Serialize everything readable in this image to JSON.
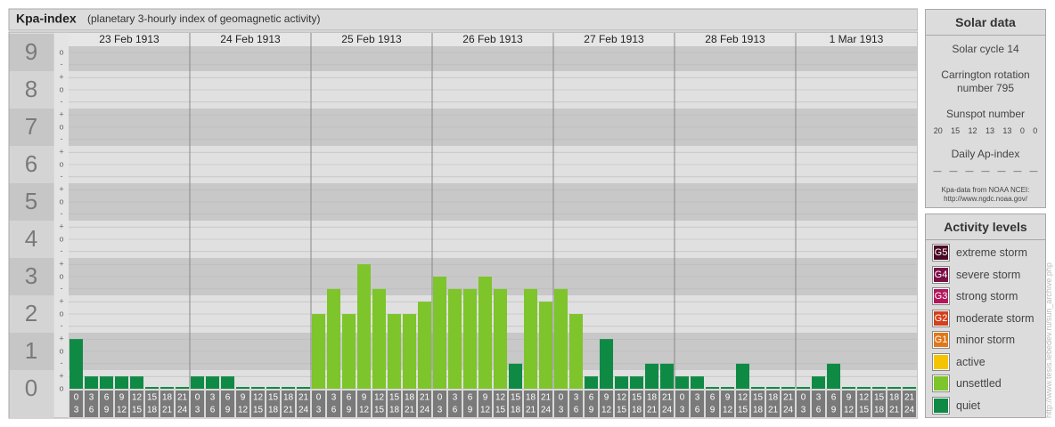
{
  "header": {
    "title": "Kpa-index",
    "subtitle": "(planetary 3-hourly index of geomagnetic activity)"
  },
  "chart_data": {
    "type": "bar",
    "days": [
      "23 Feb 1913",
      "24 Feb 1913",
      "25 Feb 1913",
      "26 Feb 1913",
      "27 Feb 1913",
      "28 Feb 1913",
      "1 Mar 1913"
    ],
    "hour_bins": [
      0,
      3,
      6,
      9,
      12,
      15,
      18,
      21,
      24
    ],
    "values": [
      1.33,
      0.33,
      0.33,
      0.33,
      0.33,
      0,
      0,
      0,
      0.33,
      0.33,
      0.33,
      0,
      0,
      0,
      0,
      0,
      2,
      2.67,
      2,
      3.33,
      2.67,
      2,
      2,
      2.33,
      3,
      2.67,
      2.67,
      3,
      2.67,
      0.67,
      2.67,
      2.33,
      2.67,
      2,
      0.33,
      1.33,
      0.33,
      0.33,
      0.67,
      0.67,
      0.33,
      0.33,
      0,
      0,
      0.67,
      0,
      0,
      0,
      0,
      0.33,
      0.67,
      0,
      0,
      0,
      0,
      0
    ],
    "colors": [
      "#0f8a45",
      "#0f8a45",
      "#0f8a45",
      "#0f8a45",
      "#0f8a45",
      "#0f8a45",
      "#0f8a45",
      "#0f8a45",
      "#0f8a45",
      "#0f8a45",
      "#0f8a45",
      "#0f8a45",
      "#0f8a45",
      "#0f8a45",
      "#0f8a45",
      "#0f8a45",
      "#7ec42b",
      "#7ec42b",
      "#7ec42b",
      "#7ec42b",
      "#7ec42b",
      "#7ec42b",
      "#7ec42b",
      "#7ec42b",
      "#7ec42b",
      "#7ec42b",
      "#7ec42b",
      "#7ec42b",
      "#7ec42b",
      "#0f8a45",
      "#7ec42b",
      "#7ec42b",
      "#7ec42b",
      "#7ec42b",
      "#0f8a45",
      "#0f8a45",
      "#0f8a45",
      "#0f8a45",
      "#0f8a45",
      "#0f8a45",
      "#0f8a45",
      "#0f8a45",
      "#0f8a45",
      "#0f8a45",
      "#0f8a45",
      "#0f8a45",
      "#0f8a45",
      "#0f8a45",
      "#0f8a45",
      "#0f8a45",
      "#0f8a45",
      "#0f8a45",
      "#0f8a45",
      "#0f8a45",
      "#0f8a45",
      "#0f8a45"
    ],
    "ylim": [
      0,
      9.5
    ],
    "yticks": [
      0,
      1,
      2,
      3,
      4,
      5,
      6,
      7,
      8,
      9
    ],
    "minor_ticks": [
      {
        "value": 0,
        "label": "o"
      },
      {
        "value": 0.33,
        "label": "+"
      },
      {
        "value": 0.67,
        "label": "-"
      },
      {
        "value": 1,
        "label": "o"
      },
      {
        "value": 1.33,
        "label": "+"
      },
      {
        "value": 1.67,
        "label": "-"
      },
      {
        "value": 2,
        "label": "o"
      },
      {
        "value": 2.33,
        "label": "+"
      },
      {
        "value": 2.67,
        "label": "-"
      },
      {
        "value": 3,
        "label": "o"
      },
      {
        "value": 3.33,
        "label": "+"
      },
      {
        "value": 3.67,
        "label": "-"
      },
      {
        "value": 4,
        "label": "o"
      },
      {
        "value": 4.33,
        "label": "+"
      },
      {
        "value": 4.67,
        "label": "-"
      },
      {
        "value": 5,
        "label": "o"
      },
      {
        "value": 5.33,
        "label": "+"
      },
      {
        "value": 5.67,
        "label": "-"
      },
      {
        "value": 6,
        "label": "o"
      },
      {
        "value": 6.33,
        "label": "+"
      },
      {
        "value": 6.67,
        "label": "-"
      },
      {
        "value": 7,
        "label": "o"
      },
      {
        "value": 7.33,
        "label": "+"
      },
      {
        "value": 7.67,
        "label": "-"
      },
      {
        "value": 8,
        "label": "o"
      },
      {
        "value": 8.33,
        "label": "+"
      },
      {
        "value": 8.67,
        "label": "-"
      },
      {
        "value": 9,
        "label": "o"
      }
    ],
    "grid": true
  },
  "solar_data": {
    "title": "Solar data",
    "cycle": "Solar cycle 14",
    "rotation": "Carrington rotation number 795",
    "sunspot_label": "Sunspot number",
    "sunspots": [
      20,
      15,
      12,
      13,
      13,
      0,
      0
    ],
    "ap_label": "Daily Ap-index",
    "ap": [
      "—",
      "—",
      "—",
      "—",
      "—",
      "—",
      "—"
    ],
    "source": "Kpa-data from NOAA NCEI:",
    "source_url": "http://www.ngdc.noaa.gov/"
  },
  "activity_levels": {
    "title": "Activity levels",
    "items": [
      {
        "badge": "G5",
        "label": "extreme storm",
        "color": "#4b0a24"
      },
      {
        "badge": "G4",
        "label": "severe storm",
        "color": "#7a0f46"
      },
      {
        "badge": "G3",
        "label": "strong storm",
        "color": "#b3165c"
      },
      {
        "badge": "G2",
        "label": "moderate storm",
        "color": "#d3401c"
      },
      {
        "badge": "G1",
        "label": "minor storm",
        "color": "#e0781c"
      },
      {
        "label": "active",
        "color": "#f5c400"
      },
      {
        "label": "unsettled",
        "color": "#7ec42b"
      },
      {
        "label": "quiet",
        "color": "#0f8a45"
      }
    ]
  },
  "watermark": "http://www.tesis.lebedev.ru/sun_archive.php"
}
